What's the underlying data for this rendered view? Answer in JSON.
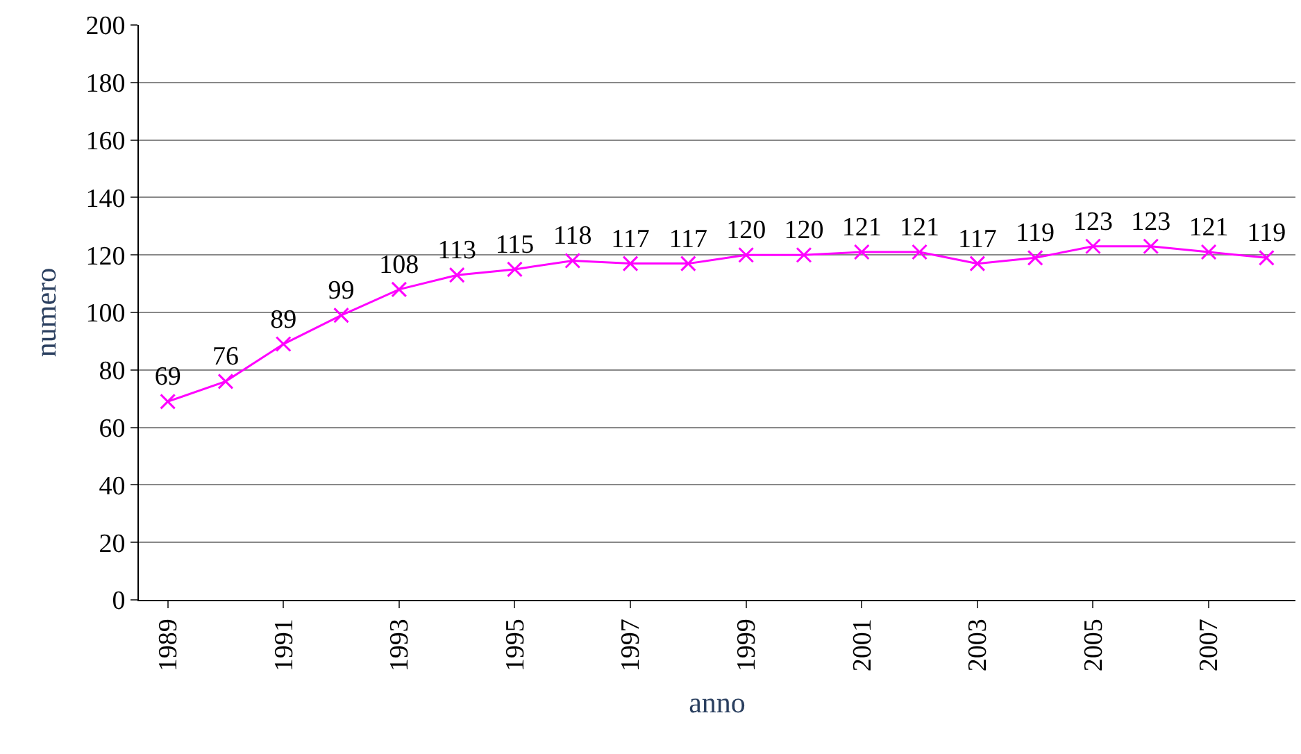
{
  "chart_data": {
    "type": "line",
    "xlabel": "anno",
    "ylabel": "numero",
    "categories": [
      "1989",
      null,
      "1991",
      null,
      "1993",
      null,
      "1995",
      null,
      "1997",
      null,
      "1999",
      null,
      "2001",
      null,
      "2003",
      null,
      "2005",
      null,
      "2007",
      null
    ],
    "series": [
      {
        "color": "#ff00ff",
        "values": [
          69,
          76,
          89,
          99,
          108,
          113,
          115,
          118,
          117,
          117,
          120,
          120,
          121,
          121,
          117,
          119,
          123,
          123,
          121,
          119
        ]
      }
    ],
    "ylim": [
      0,
      200
    ],
    "yticks": [
      0,
      20,
      40,
      60,
      80,
      100,
      120,
      140,
      160,
      180,
      200
    ],
    "grid": "y",
    "legend": false,
    "marker": "cross",
    "line_style": "solid",
    "data_labels": true
  }
}
